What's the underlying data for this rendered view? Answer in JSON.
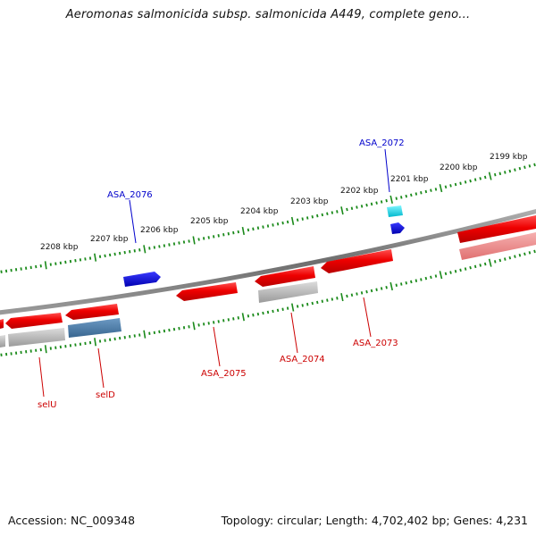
{
  "title": "Aeromonas salmonicida subsp. salmonicida A449, complete geno...",
  "footer": {
    "accession": "Accession: NC_009348",
    "summary": "Topology: circular; Length: 4,702,402 bp; Genes: 4,231"
  },
  "colors": {
    "backbone": "#7a7a7a",
    "tick": "#1a8a1a",
    "red_gene": "#ee0000",
    "blue_gene": "#0b0bd6",
    "cyan_gene": "#00d4e6",
    "pseudo_gray": "#a8a8a8",
    "pink_gene": "#e88282",
    "steel_gene": "#4a7aa8",
    "blue_label": "#0000cc",
    "red_label": "#cc0000"
  },
  "scale": {
    "unit": "kbp",
    "labels": [
      "2199 kbp",
      "2200 kbp",
      "2201 kbp",
      "2202 kbp",
      "2203 kbp",
      "2204 kbp",
      "2205 kbp",
      "2206 kbp",
      "2207 kbp",
      "2208 kbp"
    ]
  },
  "gene_labels": {
    "asa_2072": "ASA_2072",
    "asa_2076": "ASA_2076",
    "asa_2073": "ASA_2073",
    "asa_2074": "ASA_2074",
    "asa_2075": "ASA_2075",
    "selD": "selD",
    "selU": "selU"
  }
}
